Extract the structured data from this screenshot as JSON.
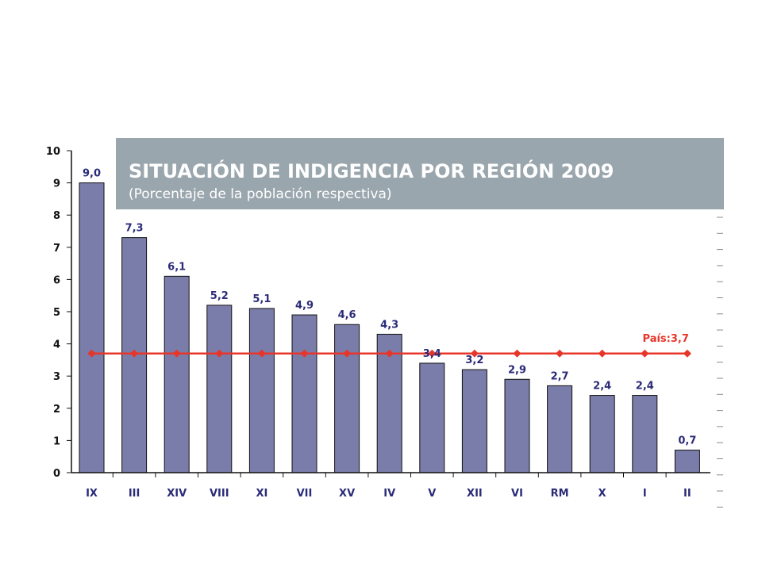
{
  "chart_data": {
    "type": "bar",
    "title": "SITUACIÓN DE INDIGENCIA POR REGIÓN 2009",
    "subtitle": "(Porcentaje de la población respectiva)",
    "categories": [
      "IX",
      "III",
      "XIV",
      "VIII",
      "XI",
      "VII",
      "XV",
      "IV",
      "V",
      "XII",
      "VI",
      "RM",
      "X",
      "I",
      "II"
    ],
    "values": [
      9.0,
      7.3,
      6.1,
      5.2,
      5.1,
      4.9,
      4.6,
      4.3,
      3.4,
      3.2,
      2.9,
      2.7,
      2.4,
      2.4,
      0.7
    ],
    "value_labels": [
      "9,0",
      "7,3",
      "6,1",
      "5,2",
      "5,1",
      "4,9",
      "4,6",
      "4,3",
      "3,4",
      "3,2",
      "2,9",
      "2,7",
      "2,4",
      "2,4",
      "0,7"
    ],
    "ylim": [
      0,
      10
    ],
    "yticks": [
      0,
      1,
      2,
      3,
      4,
      5,
      6,
      7,
      8,
      9,
      10
    ],
    "reference_line": {
      "label": "País:3,7",
      "value": 3.7
    },
    "xlabel": "",
    "ylabel": "",
    "grid": false,
    "colors": {
      "bar": "#7a7daa",
      "reference": "#e8352a",
      "text": "#2b2b78",
      "title_box": "#9aa6ad"
    }
  }
}
